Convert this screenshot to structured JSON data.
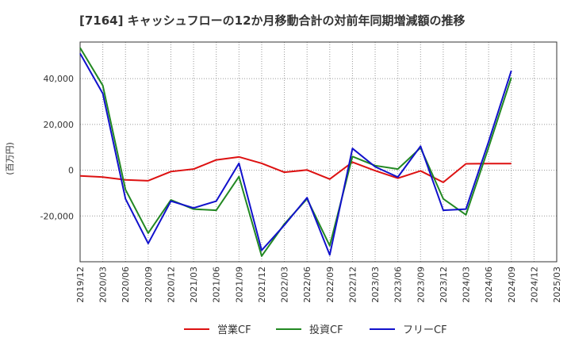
{
  "chart_data": {
    "type": "line",
    "title": "[7164]  キャッシュフローの12か月移動合計の対前年同期増減額の推移",
    "ylabel": "(百万円)",
    "xlabel": "",
    "ylim": [
      -40000,
      56000
    ],
    "yticks": [
      -20000,
      0,
      20000,
      40000
    ],
    "ytick_labels": [
      "-20,000",
      "0",
      "20,000",
      "40,000"
    ],
    "x": [
      "2019/12",
      "2020/03",
      "2020/06",
      "2020/09",
      "2020/12",
      "2021/03",
      "2021/06",
      "2021/09",
      "2021/12",
      "2022/03",
      "2022/06",
      "2022/09",
      "2022/12",
      "2023/03",
      "2023/06",
      "2023/09",
      "2023/12",
      "2024/03",
      "2024/06",
      "2024/09",
      "2024/12",
      "2025/03"
    ],
    "grid": true,
    "legend_position": "bottom",
    "series": [
      {
        "name": "営業CF",
        "color": "#dd1111",
        "values": [
          -2500,
          -3000,
          -4200,
          -4600,
          -600,
          500,
          4500,
          5800,
          3000,
          -900,
          100,
          -3900,
          3500,
          -200,
          -3500,
          -300,
          -5300,
          2800,
          2900,
          2900,
          null,
          null
        ]
      },
      {
        "name": "投資CF",
        "color": "#228822",
        "values": [
          53500,
          37000,
          -8500,
          -27500,
          -13000,
          -17000,
          -17500,
          -2800,
          -37500,
          -23500,
          -12500,
          -33000,
          6000,
          2000,
          500,
          9800,
          -12500,
          -19500,
          10000,
          40500,
          null,
          null
        ]
      },
      {
        "name": "フリーCF",
        "color": "#1111cc",
        "values": [
          51000,
          33500,
          -12500,
          -32000,
          -13500,
          -16500,
          -13500,
          3000,
          -35000,
          -24000,
          -12000,
          -37000,
          9500,
          1500,
          -3000,
          10500,
          -17500,
          -17000,
          12500,
          43500,
          null,
          null
        ]
      }
    ]
  }
}
